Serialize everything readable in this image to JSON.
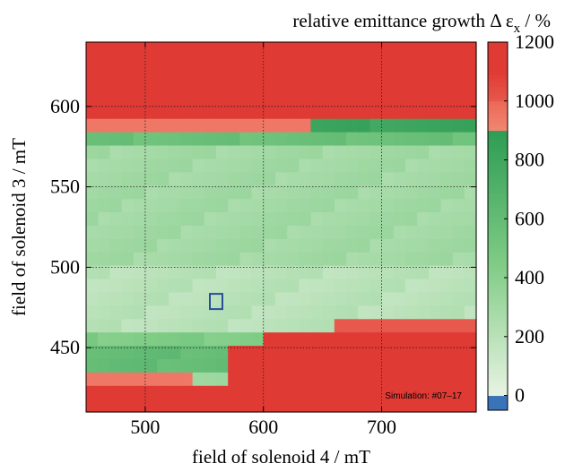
{
  "chart_data": {
    "type": "heatmap",
    "title": "",
    "xlabel": "field of solenoid 4 / mT",
    "ylabel": "field of solenoid 3 / mT",
    "xlim": [
      450,
      780
    ],
    "ylim": [
      410,
      640
    ],
    "x_ticks": [
      500,
      600,
      700
    ],
    "y_ticks": [
      450,
      500,
      550,
      600
    ],
    "grid": true,
    "colorbar": {
      "title": "relative emittance growth  Δ ε",
      "title_subscript": "x",
      "title_suffix": " / %",
      "range": [
        -50,
        1200
      ],
      "ticks": [
        0,
        200,
        400,
        600,
        800,
        1000,
        1200
      ],
      "colors": {
        "low": "#3a73b8",
        "light": "#e8f3e3",
        "mid": "#7fcc85",
        "dark": "#2e9c54",
        "salmon": "#f28771",
        "red": "#e03a34"
      },
      "red_threshold": 900
    },
    "grid_cells": {
      "x_start": 450,
      "x_step": 10,
      "n_x": 33,
      "y_start": 410,
      "y_step": 8.3,
      "n_y": 28,
      "value_regions": [
        {
          "y": [
            595,
            640
          ],
          "x": [
            450,
            780
          ],
          "value": 1100
        },
        {
          "y": [
            586,
            595
          ],
          "x": [
            450,
            645
          ],
          "value": 950
        },
        {
          "y": [
            586,
            595
          ],
          "x": [
            645,
            780
          ],
          "value": 820
        },
        {
          "y": [
            578,
            586
          ],
          "x": [
            450,
            780
          ],
          "value": 560
        },
        {
          "y": [
            500,
            578
          ],
          "x": [
            450,
            780
          ],
          "value": 300
        },
        {
          "y": [
            460,
            500
          ],
          "x": [
            450,
            780
          ],
          "value": 200
        },
        {
          "y": [
            460,
            470
          ],
          "x": [
            665,
            780
          ],
          "value": 1000
        },
        {
          "y": [
            452,
            460
          ],
          "x": [
            450,
            605
          ],
          "value": 450
        },
        {
          "y": [
            452,
            460
          ],
          "x": [
            605,
            780
          ],
          "value": 1100
        },
        {
          "y": [
            435,
            452
          ],
          "x": [
            450,
            575
          ],
          "value": 600
        },
        {
          "y": [
            427,
            435
          ],
          "x": [
            450,
            545
          ],
          "value": 950
        },
        {
          "y": [
            410,
            452
          ],
          "x": [
            575,
            780
          ],
          "value": 1100
        },
        {
          "y": [
            410,
            427
          ],
          "x": [
            450,
            780
          ],
          "value": 1100
        }
      ]
    },
    "marker": {
      "x": 560,
      "y": 479,
      "color": "#2a4da0"
    },
    "annotation": "Simulation: #07–17"
  }
}
